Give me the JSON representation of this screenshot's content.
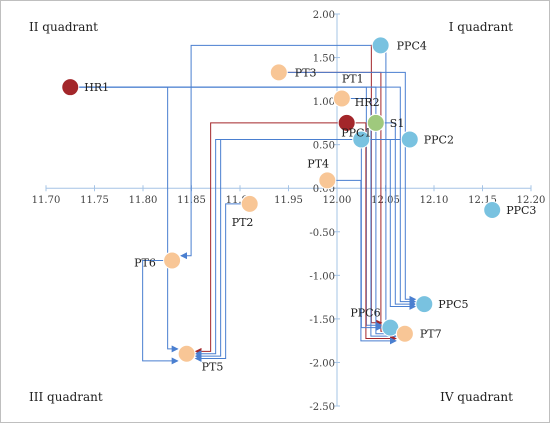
{
  "chart_data": {
    "type": "scatter",
    "xlim": [
      11.7,
      12.2
    ],
    "ylim": [
      -2.5,
      2.0
    ],
    "x_ticks": [
      "11.70",
      "11.75",
      "11.80",
      "11.85",
      "11.90",
      "11.95",
      "12.00",
      "12.05",
      "12.10",
      "12.15",
      "12.20"
    ],
    "y_ticks": [
      "2.00",
      "1.50",
      "1.00",
      "0.50",
      "0.00",
      "-0.50",
      "-1.00",
      "-1.50",
      "-2.00",
      "-2.50"
    ],
    "axis_origin": {
      "x": 12.0,
      "y": 0.0
    },
    "quadrant_labels": {
      "I": "I quadrant",
      "II": "II quadrant",
      "III": "III quadrant",
      "IV": "IV quadrant"
    },
    "grid": false,
    "legend": "none",
    "colors": {
      "PPC": "#79c2e0",
      "PT": "#f8c696",
      "HR": "#a3262a",
      "S": "#9fc97d",
      "arrow_blue": "#4a7fd0",
      "arrow_red": "#a3262a",
      "axis": "#a6c4e6"
    },
    "points": [
      {
        "name": "PPC4",
        "x": 12.045,
        "y": 1.64,
        "group": "PPC"
      },
      {
        "name": "PT3",
        "x": 11.94,
        "y": 1.33,
        "group": "PT"
      },
      {
        "name": "HR1",
        "x": 11.725,
        "y": 1.16,
        "group": "HR"
      },
      {
        "name": "PT1",
        "x": 12.005,
        "y": 1.03,
        "group": "PT"
      },
      {
        "name": "HR2",
        "x": 12.01,
        "y": 0.75,
        "group": "HR"
      },
      {
        "name": "S1",
        "x": 12.04,
        "y": 0.75,
        "group": "S"
      },
      {
        "name": "PPC1",
        "x": 12.025,
        "y": 0.56,
        "group": "PPC"
      },
      {
        "name": "PPC2",
        "x": 12.075,
        "y": 0.56,
        "group": "PPC"
      },
      {
        "name": "PT4",
        "x": 11.99,
        "y": 0.09,
        "group": "PT"
      },
      {
        "name": "PT2",
        "x": 11.91,
        "y": -0.18,
        "group": "PT"
      },
      {
        "name": "PPC3",
        "x": 12.16,
        "y": -0.25,
        "group": "PPC"
      },
      {
        "name": "PT6",
        "x": 11.83,
        "y": -0.83,
        "group": "PT"
      },
      {
        "name": "PPC5",
        "x": 12.09,
        "y": -1.33,
        "group": "PPC"
      },
      {
        "name": "PPC6",
        "x": 12.055,
        "y": -1.6,
        "group": "PPC"
      },
      {
        "name": "PT7",
        "x": 12.07,
        "y": -1.67,
        "group": "PT"
      },
      {
        "name": "PT5",
        "x": 11.845,
        "y": -1.9,
        "group": "PT"
      }
    ],
    "arrows": [
      {
        "from": "PPC4",
        "to": "PT6",
        "color": "blue"
      },
      {
        "from": "PPC4",
        "to": "PPC6",
        "color": "red"
      },
      {
        "from": "PPC4",
        "to": "PT7",
        "color": "blue"
      },
      {
        "from": "PT3",
        "to": "PT7",
        "color": "red"
      },
      {
        "from": "PT3",
        "to": "PPC5",
        "color": "blue"
      },
      {
        "from": "HR1",
        "to": "PT5",
        "color": "blue"
      },
      {
        "from": "HR1",
        "to": "PPC6",
        "color": "blue"
      },
      {
        "from": "HR1",
        "to": "PT7",
        "color": "blue"
      },
      {
        "from": "HR1",
        "to": "PPC5",
        "color": "blue"
      },
      {
        "from": "PT1",
        "to": "PT7",
        "color": "blue"
      },
      {
        "from": "HR2",
        "to": "PT5",
        "color": "red"
      },
      {
        "from": "HR2",
        "to": "PT7",
        "color": "red"
      },
      {
        "from": "S1",
        "to": "PPC5",
        "color": "blue"
      },
      {
        "from": "PPC1",
        "to": "PT5",
        "color": "blue"
      },
      {
        "from": "PPC1",
        "to": "PPC6",
        "color": "blue"
      },
      {
        "from": "PPC2",
        "to": "PT5",
        "color": "blue"
      },
      {
        "from": "PPC2",
        "to": "PPC5",
        "color": "blue"
      },
      {
        "from": "PT4",
        "to": "PT7",
        "color": "blue"
      },
      {
        "from": "PT2",
        "to": "PT5",
        "color": "blue"
      },
      {
        "from": "PT6",
        "to": "PT5",
        "color": "blue"
      }
    ]
  }
}
